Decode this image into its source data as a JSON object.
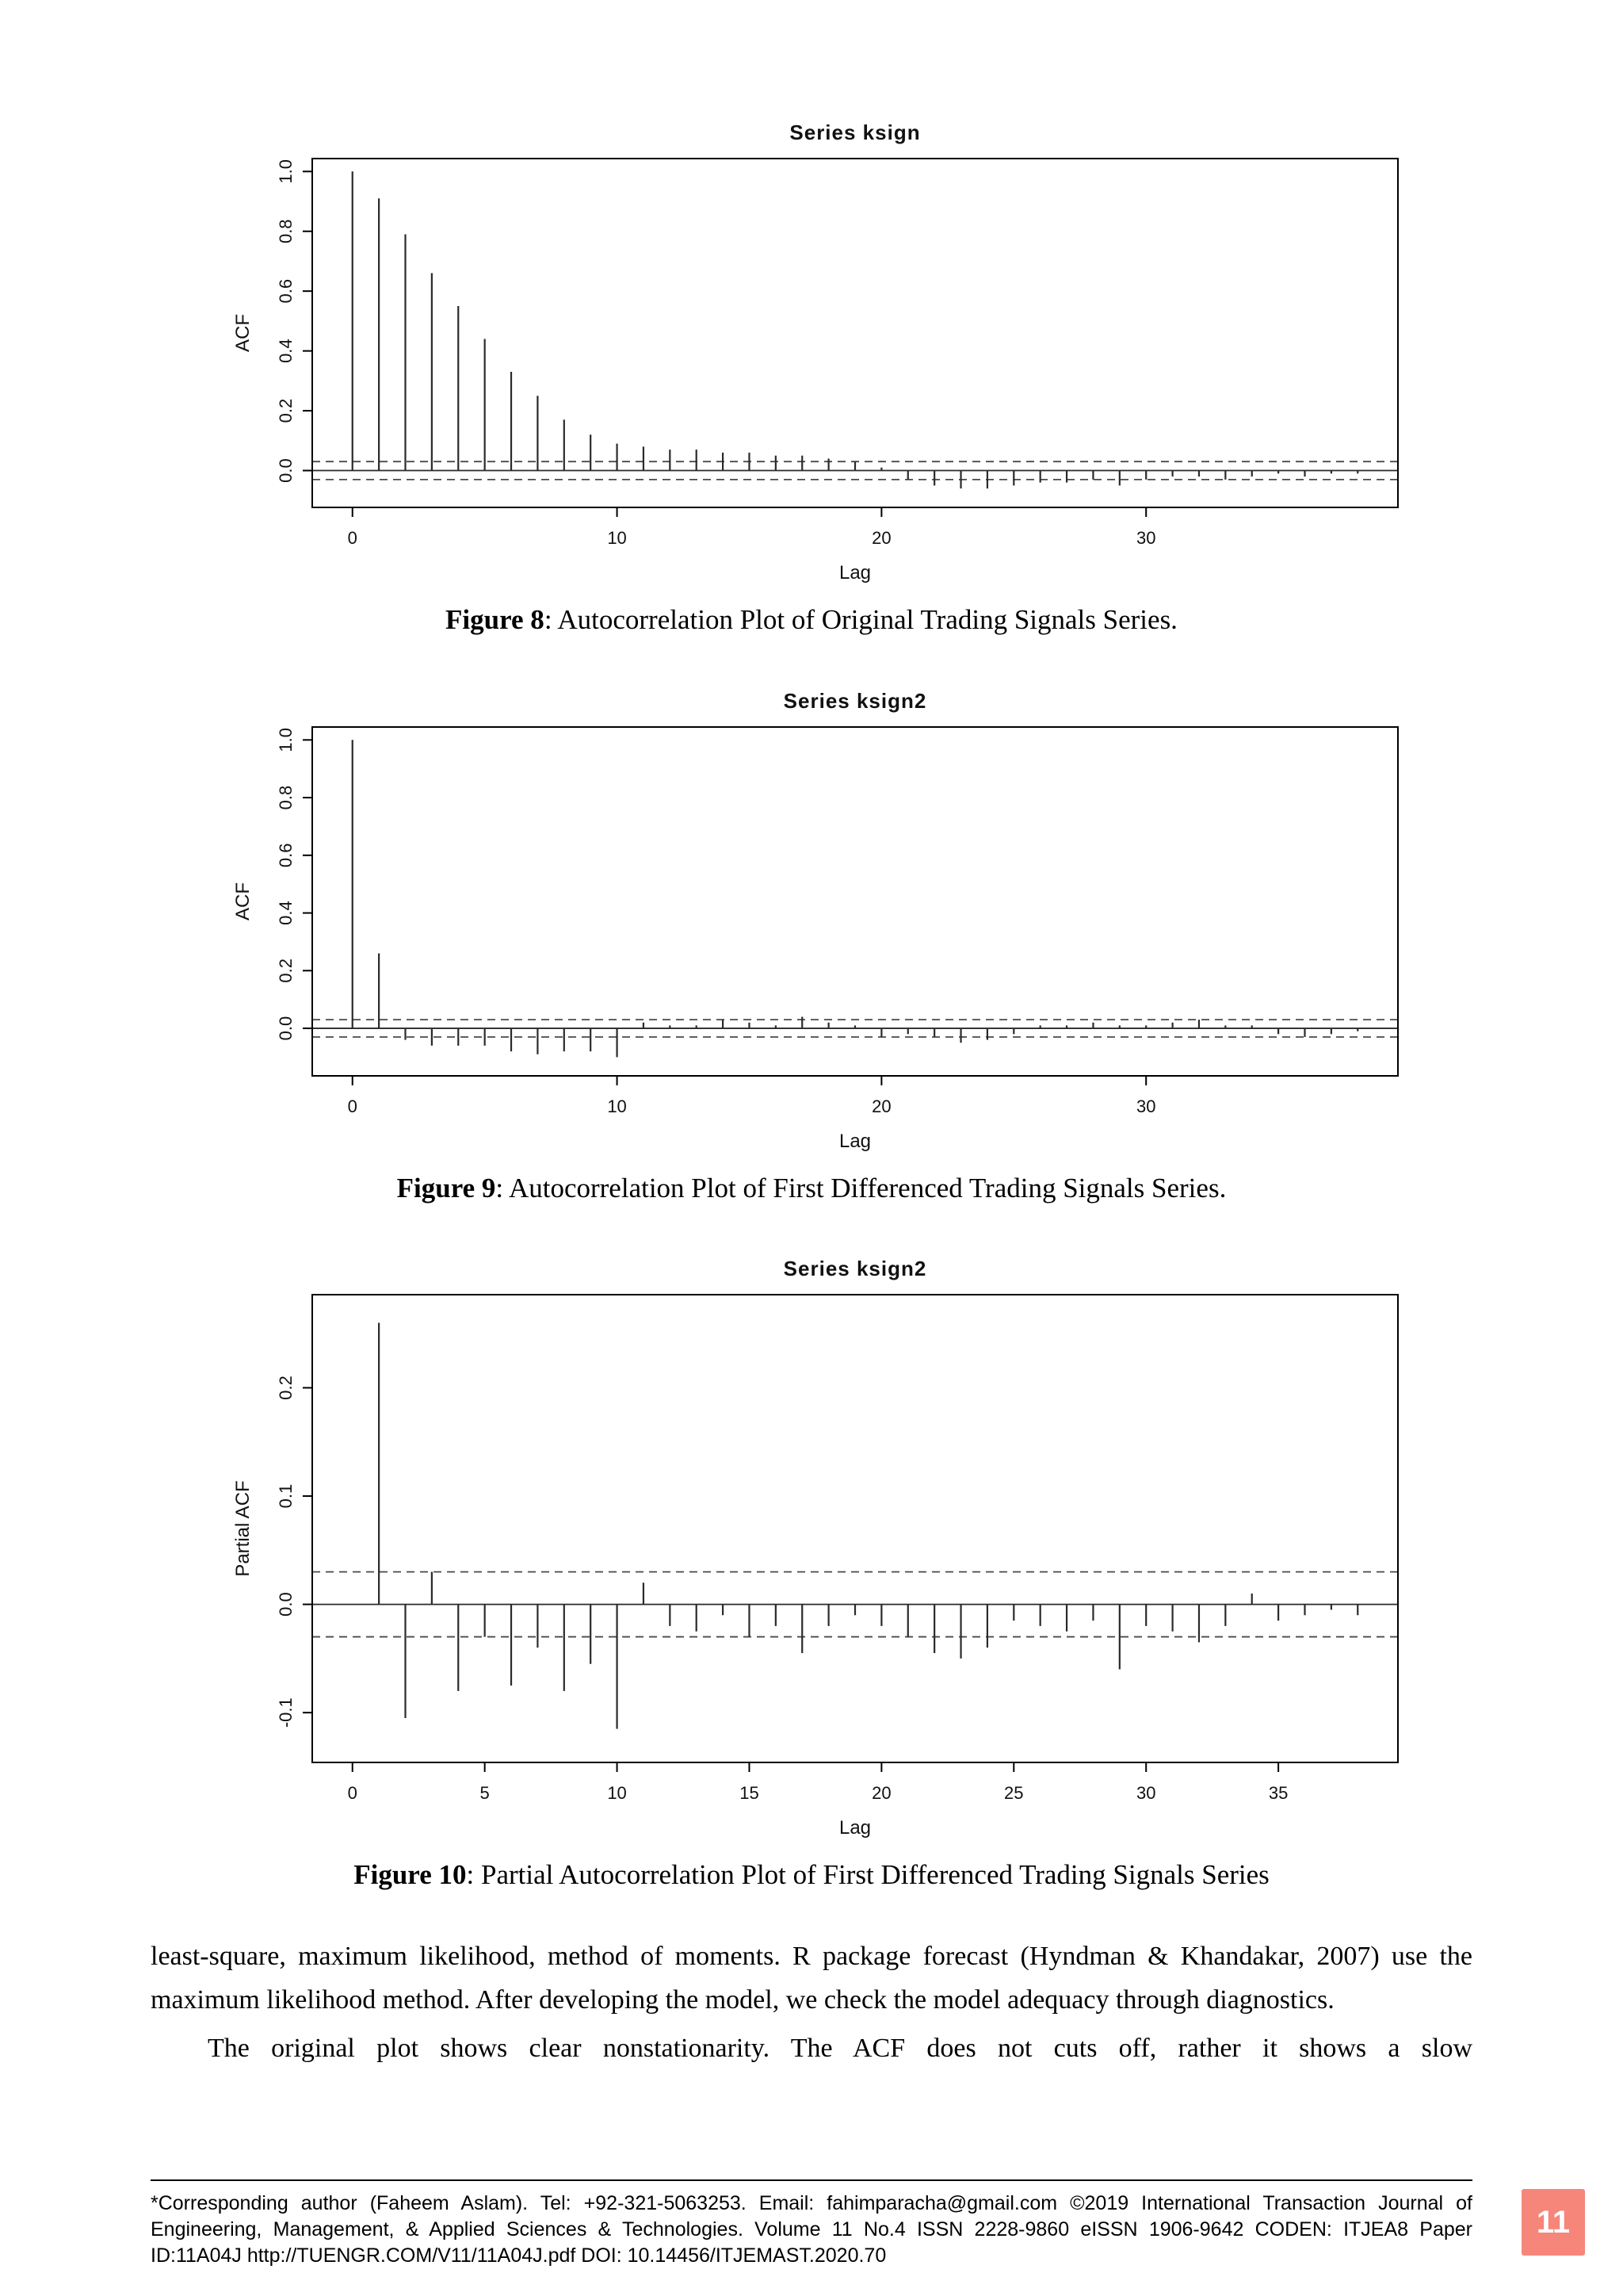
{
  "figures": [
    {
      "label": "Figure 8",
      "caption_rest": ": Autocorrelation Plot of Original Trading Signals Series."
    },
    {
      "label": "Figure 9",
      "caption_rest": ": Autocorrelation Plot of First Differenced Trading Signals Series."
    },
    {
      "label": "Figure 10",
      "caption_rest": ": Partial Autocorrelation Plot of First Differenced Trading Signals Series"
    }
  ],
  "body": {
    "paragraph1": "least-square, maximum likelihood, method of moments. R package forecast (Hyndman & Khandakar, 2007) use the maximum likelihood method. After developing the model, we check the model adequacy through diagnostics.",
    "paragraph2": "The original plot shows clear nonstationarity. The ACF does not cuts off, rather it shows a slow"
  },
  "footer": {
    "text": "*Corresponding author (Faheem Aslam). Tel: +92-321-5063253. Email: fahimparacha@gmail.com ©2019 International Transaction Journal of Engineering, Management, & Applied Sciences & Technologies. Volume 11 No.4 ISSN 2228-9860 eISSN 1906-9642 CODEN: ITJEA8 Paper ID:11A04J http://TUENGR.COM/V11/11A04J.pdf DOI: 10.14456/ITJEMAST.2020.70",
    "page_number": "11",
    "badge_color": "#f6867a"
  },
  "chart_data": [
    {
      "type": "bar",
      "subtype": "acf-stem",
      "title": "Series ksign",
      "xlabel": "Lag",
      "ylabel": "ACF",
      "xlim": [
        0,
        38
      ],
      "ylim": [
        -0.08,
        1.0
      ],
      "x_ticks": [
        0,
        10,
        20,
        30
      ],
      "y_ticks": [
        0.0,
        0.2,
        0.4,
        0.6,
        0.8,
        1.0
      ],
      "conf_band": 0.03,
      "grid": false,
      "legend": "none",
      "lags": [
        0,
        1,
        2,
        3,
        4,
        5,
        6,
        7,
        8,
        9,
        10,
        11,
        12,
        13,
        14,
        15,
        16,
        17,
        18,
        19,
        20,
        21,
        22,
        23,
        24,
        25,
        26,
        27,
        28,
        29,
        30,
        31,
        32,
        33,
        34,
        35,
        36,
        37,
        38
      ],
      "values": [
        1.0,
        0.91,
        0.79,
        0.66,
        0.55,
        0.44,
        0.33,
        0.25,
        0.17,
        0.12,
        0.09,
        0.08,
        0.07,
        0.07,
        0.06,
        0.06,
        0.05,
        0.05,
        0.04,
        0.03,
        0.01,
        -0.03,
        -0.05,
        -0.06,
        -0.06,
        -0.05,
        -0.04,
        -0.04,
        -0.03,
        -0.05,
        -0.03,
        -0.02,
        -0.02,
        -0.03,
        -0.02,
        -0.01,
        -0.02,
        -0.01,
        -0.01
      ]
    },
    {
      "type": "bar",
      "subtype": "acf-stem",
      "title": "Series ksign2",
      "xlabel": "Lag",
      "ylabel": "ACF",
      "xlim": [
        0,
        38
      ],
      "ylim": [
        -0.12,
        1.0
      ],
      "x_ticks": [
        0,
        10,
        20,
        30
      ],
      "y_ticks": [
        0.0,
        0.2,
        0.4,
        0.6,
        0.8,
        1.0
      ],
      "conf_band": 0.03,
      "grid": false,
      "legend": "none",
      "lags": [
        0,
        1,
        2,
        3,
        4,
        5,
        6,
        7,
        8,
        9,
        10,
        11,
        12,
        13,
        14,
        15,
        16,
        17,
        18,
        19,
        20,
        21,
        22,
        23,
        24,
        25,
        26,
        27,
        28,
        29,
        30,
        31,
        32,
        33,
        34,
        35,
        36,
        37,
        38
      ],
      "values": [
        1.0,
        0.26,
        -0.04,
        -0.06,
        -0.06,
        -0.06,
        -0.08,
        -0.09,
        -0.08,
        -0.08,
        -0.1,
        0.02,
        0.01,
        0.01,
        0.03,
        0.02,
        0.01,
        0.04,
        0.02,
        0.01,
        -0.03,
        -0.02,
        -0.03,
        -0.05,
        -0.04,
        -0.02,
        0.01,
        0.01,
        0.02,
        0.01,
        0.01,
        0.02,
        0.03,
        0.01,
        0.01,
        -0.02,
        -0.03,
        -0.02,
        -0.01
      ]
    },
    {
      "type": "bar",
      "subtype": "pacf-stem",
      "title": "Series ksign2",
      "xlabel": "Lag",
      "ylabel": "Partial ACF",
      "xlim": [
        0,
        38
      ],
      "ylim": [
        -0.13,
        0.27
      ],
      "x_ticks": [
        0,
        5,
        10,
        15,
        20,
        25,
        30,
        35
      ],
      "y_ticks": [
        -0.1,
        0.0,
        0.1,
        0.2
      ],
      "conf_band": 0.03,
      "grid": false,
      "legend": "none",
      "lags": [
        1,
        2,
        3,
        4,
        5,
        6,
        7,
        8,
        9,
        10,
        11,
        12,
        13,
        14,
        15,
        16,
        17,
        18,
        19,
        20,
        21,
        22,
        23,
        24,
        25,
        26,
        27,
        28,
        29,
        30,
        31,
        32,
        33,
        34,
        35,
        36,
        37,
        38
      ],
      "values": [
        0.26,
        -0.105,
        0.03,
        -0.08,
        -0.03,
        -0.075,
        -0.04,
        -0.08,
        -0.055,
        -0.115,
        0.02,
        -0.02,
        -0.025,
        -0.01,
        -0.03,
        -0.02,
        -0.045,
        -0.02,
        -0.01,
        -0.02,
        -0.03,
        -0.045,
        -0.05,
        -0.04,
        -0.015,
        -0.02,
        -0.025,
        -0.015,
        -0.06,
        -0.02,
        -0.025,
        -0.035,
        -0.02,
        0.01,
        -0.015,
        -0.01,
        -0.005,
        -0.01
      ]
    }
  ]
}
